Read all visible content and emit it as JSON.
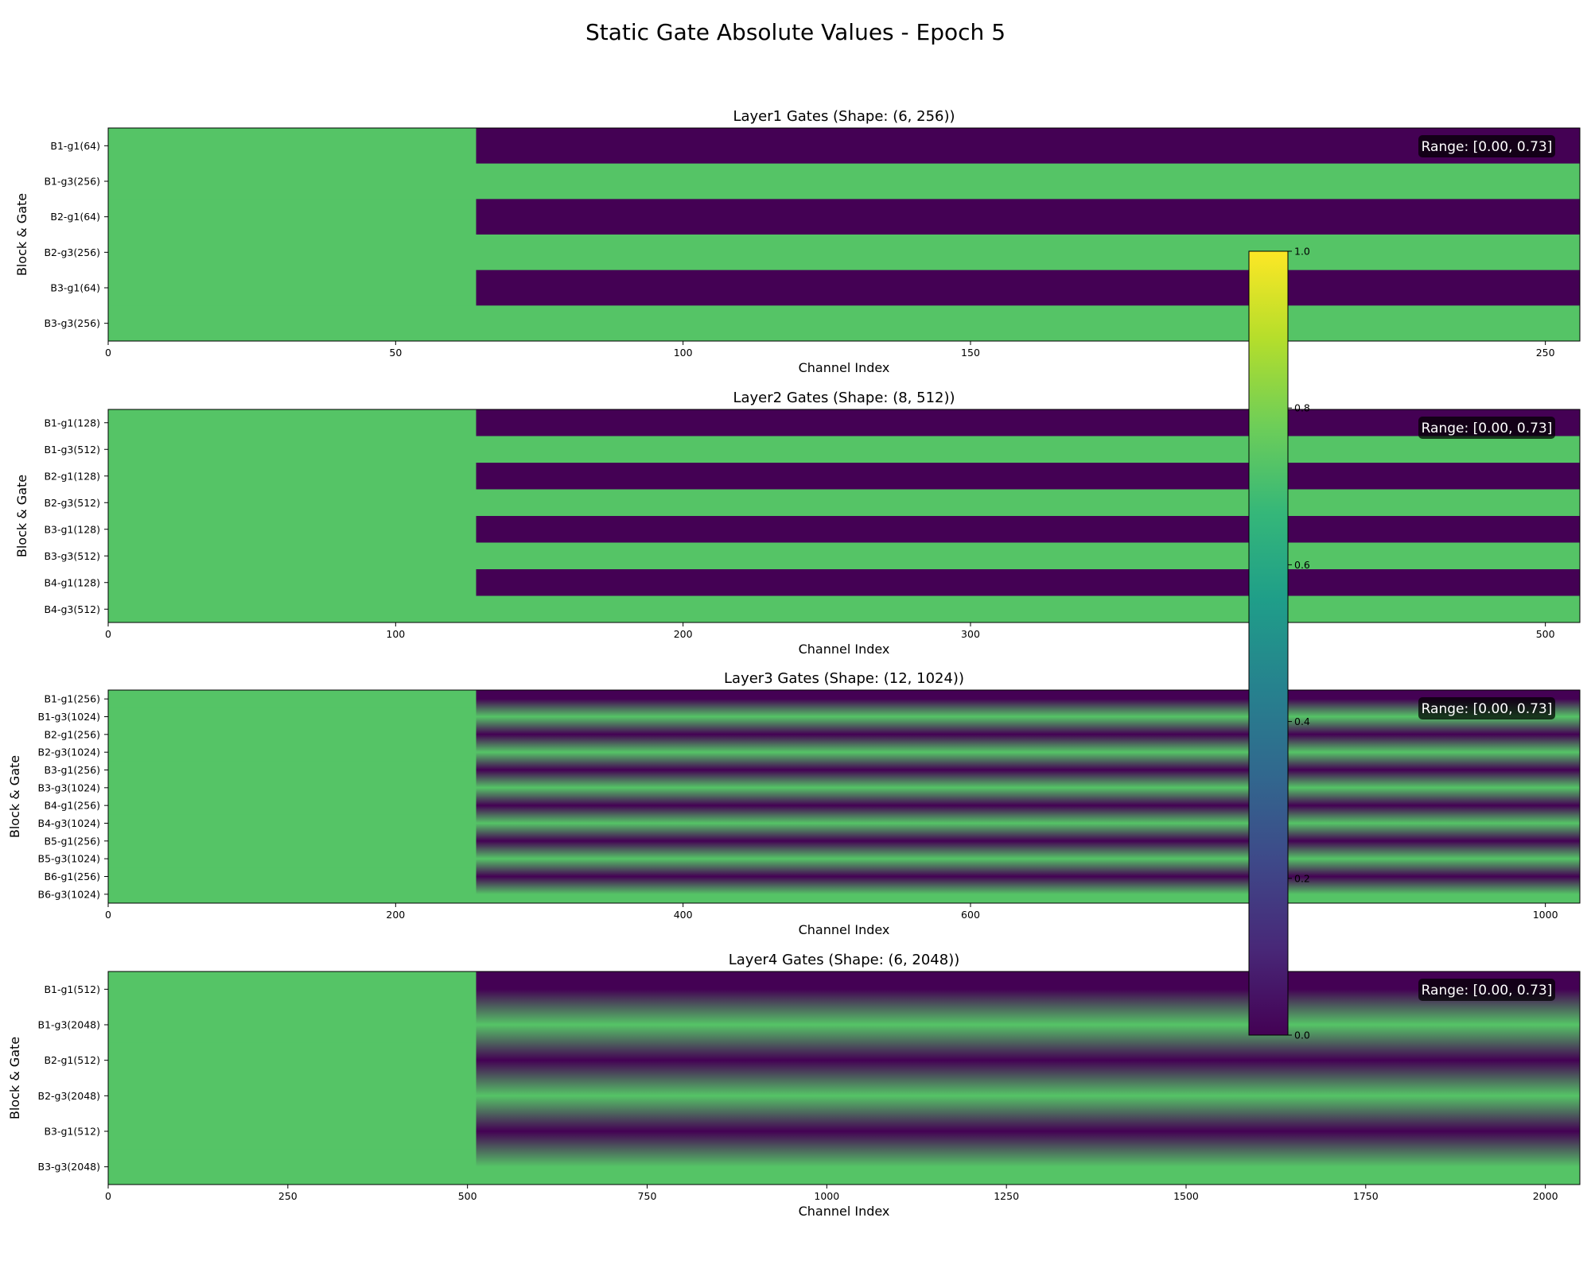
{
  "figure": {
    "title": "Static Gate Absolute Values - Epoch 5"
  },
  "colormap": {
    "name": "viridis",
    "stops": [
      "#440154",
      "#482878",
      "#3e4989",
      "#31688e",
      "#26828e",
      "#1f9e89",
      "#35b779",
      "#6ece58",
      "#b5de2b",
      "#fde725"
    ],
    "axis_range": [
      0.0,
      1.0
    ],
    "ticks": [
      "0.0",
      "0.2",
      "0.4",
      "0.6",
      "0.8",
      "1.0"
    ]
  },
  "chart_data": [
    {
      "type": "heatmap",
      "title": "Layer1 Gates (Shape: (6, 256))",
      "xlabel": "Channel Index",
      "ylabel": "Block & Gate",
      "n_channels": 256,
      "xlim": [
        0,
        256
      ],
      "xticks": [
        0,
        50,
        100,
        150,
        200,
        250
      ],
      "rows": [
        {
          "label": "B1-g1(64)",
          "active_channels": 64
        },
        {
          "label": "B1-g3(256)",
          "active_channels": 256
        },
        {
          "label": "B2-g1(64)",
          "active_channels": 64
        },
        {
          "label": "B2-g3(256)",
          "active_channels": 256
        },
        {
          "label": "B3-g1(64)",
          "active_channels": 64
        },
        {
          "label": "B3-g3(256)",
          "active_channels": 256
        }
      ],
      "active_value": 0.73,
      "inactive_value": 0.0,
      "range_annotation": "Range: [0.00, 0.73]"
    },
    {
      "type": "heatmap",
      "title": "Layer2 Gates (Shape: (8, 512))",
      "xlabel": "Channel Index",
      "ylabel": "Block & Gate",
      "n_channels": 512,
      "xlim": [
        0,
        512
      ],
      "xticks": [
        0,
        100,
        200,
        300,
        400,
        500
      ],
      "rows": [
        {
          "label": "B1-g1(128)",
          "active_channels": 128
        },
        {
          "label": "B1-g3(512)",
          "active_channels": 512
        },
        {
          "label": "B2-g1(128)",
          "active_channels": 128
        },
        {
          "label": "B2-g3(512)",
          "active_channels": 512
        },
        {
          "label": "B3-g1(128)",
          "active_channels": 128
        },
        {
          "label": "B3-g3(512)",
          "active_channels": 512
        },
        {
          "label": "B4-g1(128)",
          "active_channels": 128
        },
        {
          "label": "B4-g3(512)",
          "active_channels": 512
        }
      ],
      "active_value": 0.73,
      "inactive_value": 0.0,
      "range_annotation": "Range: [0.00, 0.73]"
    },
    {
      "type": "heatmap",
      "title": "Layer3 Gates (Shape: (12, 1024))",
      "xlabel": "Channel Index",
      "ylabel": "Block & Gate",
      "n_channels": 1024,
      "xlim": [
        0,
        1024
      ],
      "xticks": [
        0,
        200,
        400,
        600,
        800,
        1000
      ],
      "rows": [
        {
          "label": "B1-g1(256)",
          "active_channels": 256
        },
        {
          "label": "B1-g3(1024)",
          "active_channels": 1024
        },
        {
          "label": "B2-g1(256)",
          "active_channels": 256
        },
        {
          "label": "B2-g3(1024)",
          "active_channels": 1024
        },
        {
          "label": "B3-g1(256)",
          "active_channels": 256
        },
        {
          "label": "B3-g3(1024)",
          "active_channels": 1024
        },
        {
          "label": "B4-g1(256)",
          "active_channels": 256
        },
        {
          "label": "B4-g3(1024)",
          "active_channels": 1024
        },
        {
          "label": "B5-g1(256)",
          "active_channels": 256
        },
        {
          "label": "B5-g3(1024)",
          "active_channels": 1024
        },
        {
          "label": "B6-g1(256)",
          "active_channels": 256
        },
        {
          "label": "B6-g3(1024)",
          "active_channels": 1024
        }
      ],
      "active_value": 0.73,
      "inactive_value": 0.0,
      "range_annotation": "Range: [0.00, 0.73]"
    },
    {
      "type": "heatmap",
      "title": "Layer4 Gates (Shape: (6, 2048))",
      "xlabel": "Channel Index",
      "ylabel": "Block & Gate",
      "n_channels": 2048,
      "xlim": [
        0,
        2048
      ],
      "xticks": [
        0,
        250,
        500,
        750,
        1000,
        1250,
        1500,
        1750,
        2000
      ],
      "rows": [
        {
          "label": "B1-g1(512)",
          "active_channels": 512
        },
        {
          "label": "B1-g3(2048)",
          "active_channels": 2048
        },
        {
          "label": "B2-g1(512)",
          "active_channels": 512
        },
        {
          "label": "B2-g3(2048)",
          "active_channels": 2048
        },
        {
          "label": "B3-g1(512)",
          "active_channels": 512
        },
        {
          "label": "B3-g3(2048)",
          "active_channels": 2048
        }
      ],
      "active_value": 0.73,
      "inactive_value": 0.0,
      "range_annotation": "Range: [0.00, 0.73]"
    }
  ]
}
